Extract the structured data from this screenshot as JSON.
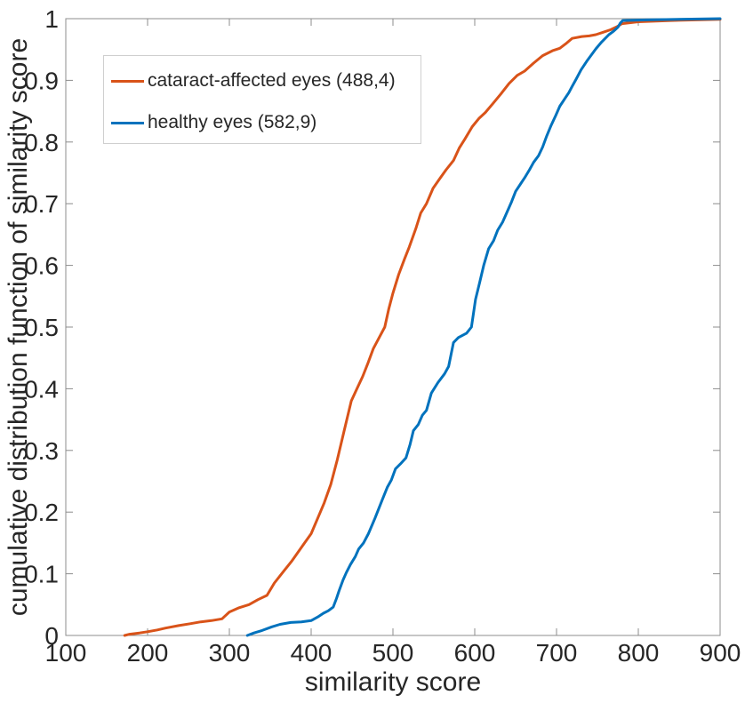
{
  "colors": {
    "axis": "#8C8C8C",
    "text": "#262626",
    "legend_border": "#CFCFCF",
    "background": "#FFFFFF"
  },
  "chart_data": {
    "type": "line",
    "subtype": "empirical_cdf",
    "title": "",
    "xlabel": "similarity score",
    "ylabel": "cumulative distribution function of similarity score",
    "xlim": [
      100,
      900
    ],
    "ylim": [
      0,
      1
    ],
    "x_ticks": [
      100,
      200,
      300,
      400,
      500,
      600,
      700,
      800,
      900
    ],
    "x_tick_labels": [
      "100",
      "200",
      "300",
      "400",
      "500",
      "600",
      "700",
      "800",
      "900"
    ],
    "y_ticks": [
      0,
      0.1,
      0.2,
      0.3,
      0.4,
      0.5,
      0.6,
      0.7,
      0.8,
      0.9,
      1
    ],
    "y_tick_labels": [
      "0",
      "0.1",
      "0.2",
      "0.3",
      "0.4",
      "0.5",
      "0.6",
      "0.7",
      "0.8",
      "0.9",
      "1"
    ],
    "grid": false,
    "tick_direction": "in",
    "box": true,
    "legend_position": "top-left",
    "series": [
      {
        "id": "cataract-affected-eyes",
        "name": "cataract-affected eyes (488,4)",
        "color": "#D95319",
        "line_width": 3,
        "points": [
          [
            172,
            0
          ],
          [
            178,
            0.002
          ],
          [
            190,
            0.004
          ],
          [
            200,
            0.006
          ],
          [
            212,
            0.009
          ],
          [
            222,
            0.012
          ],
          [
            238,
            0.016
          ],
          [
            252,
            0.019
          ],
          [
            265,
            0.022
          ],
          [
            278,
            0.024
          ],
          [
            291,
            0.027
          ],
          [
            300,
            0.038
          ],
          [
            312,
            0.045
          ],
          [
            324,
            0.05
          ],
          [
            335,
            0.058
          ],
          [
            346,
            0.065
          ],
          [
            355,
            0.085
          ],
          [
            367,
            0.105
          ],
          [
            376,
            0.12
          ],
          [
            384,
            0.135
          ],
          [
            392,
            0.15
          ],
          [
            400,
            0.165
          ],
          [
            408,
            0.19
          ],
          [
            416,
            0.215
          ],
          [
            424,
            0.245
          ],
          [
            432,
            0.285
          ],
          [
            440,
            0.33
          ],
          [
            449,
            0.38
          ],
          [
            456,
            0.4
          ],
          [
            463,
            0.42
          ],
          [
            469,
            0.44
          ],
          [
            476,
            0.465
          ],
          [
            482,
            0.48
          ],
          [
            490,
            0.5
          ],
          [
            495,
            0.53
          ],
          [
            500,
            0.555
          ],
          [
            507,
            0.585
          ],
          [
            514,
            0.61
          ],
          [
            520,
            0.63
          ],
          [
            528,
            0.66
          ],
          [
            534,
            0.685
          ],
          [
            541,
            0.7
          ],
          [
            549,
            0.725
          ],
          [
            557,
            0.74
          ],
          [
            565,
            0.755
          ],
          [
            574,
            0.77
          ],
          [
            581,
            0.79
          ],
          [
            588,
            0.805
          ],
          [
            597,
            0.825
          ],
          [
            605,
            0.838
          ],
          [
            613,
            0.848
          ],
          [
            622,
            0.862
          ],
          [
            632,
            0.878
          ],
          [
            642,
            0.895
          ],
          [
            652,
            0.908
          ],
          [
            661,
            0.915
          ],
          [
            672,
            0.928
          ],
          [
            683,
            0.94
          ],
          [
            695,
            0.948
          ],
          [
            704,
            0.952
          ],
          [
            712,
            0.96
          ],
          [
            719,
            0.968
          ],
          [
            731,
            0.971
          ],
          [
            740,
            0.972
          ],
          [
            748,
            0.974
          ],
          [
            757,
            0.978
          ],
          [
            766,
            0.982
          ],
          [
            774,
            0.987
          ],
          [
            780,
            0.992
          ],
          [
            800,
            0.995
          ],
          [
            840,
            0.997
          ],
          [
            900,
            0.999
          ]
        ]
      },
      {
        "id": "healthy-eyes",
        "name": "healthy eyes (582,9)",
        "color": "#0072BD",
        "line_width": 3,
        "points": [
          [
            322,
            0
          ],
          [
            330,
            0.004
          ],
          [
            340,
            0.008
          ],
          [
            352,
            0.014
          ],
          [
            362,
            0.018
          ],
          [
            375,
            0.021
          ],
          [
            388,
            0.022
          ],
          [
            400,
            0.024
          ],
          [
            408,
            0.03
          ],
          [
            415,
            0.036
          ],
          [
            421,
            0.04
          ],
          [
            427,
            0.046
          ],
          [
            431,
            0.06
          ],
          [
            434,
            0.072
          ],
          [
            439,
            0.09
          ],
          [
            443,
            0.102
          ],
          [
            448,
            0.115
          ],
          [
            454,
            0.128
          ],
          [
            458,
            0.14
          ],
          [
            464,
            0.15
          ],
          [
            470,
            0.165
          ],
          [
            478,
            0.19
          ],
          [
            487,
            0.22
          ],
          [
            493,
            0.24
          ],
          [
            498,
            0.252
          ],
          [
            503,
            0.27
          ],
          [
            509,
            0.278
          ],
          [
            516,
            0.288
          ],
          [
            521,
            0.31
          ],
          [
            525,
            0.332
          ],
          [
            531,
            0.342
          ],
          [
            536,
            0.357
          ],
          [
            541,
            0.365
          ],
          [
            547,
            0.393
          ],
          [
            555,
            0.41
          ],
          [
            563,
            0.424
          ],
          [
            568,
            0.436
          ],
          [
            571,
            0.455
          ],
          [
            574,
            0.475
          ],
          [
            580,
            0.483
          ],
          [
            590,
            0.49
          ],
          [
            596,
            0.5
          ],
          [
            601,
            0.545
          ],
          [
            606,
            0.572
          ],
          [
            611,
            0.6
          ],
          [
            617,
            0.627
          ],
          [
            623,
            0.64
          ],
          [
            628,
            0.657
          ],
          [
            634,
            0.67
          ],
          [
            639,
            0.685
          ],
          [
            645,
            0.703
          ],
          [
            650,
            0.72
          ],
          [
            656,
            0.732
          ],
          [
            661,
            0.742
          ],
          [
            667,
            0.755
          ],
          [
            672,
            0.767
          ],
          [
            678,
            0.778
          ],
          [
            683,
            0.792
          ],
          [
            688,
            0.81
          ],
          [
            693,
            0.826
          ],
          [
            699,
            0.843
          ],
          [
            704,
            0.858
          ],
          [
            710,
            0.87
          ],
          [
            715,
            0.88
          ],
          [
            719,
            0.89
          ],
          [
            724,
            0.902
          ],
          [
            730,
            0.917
          ],
          [
            737,
            0.931
          ],
          [
            742,
            0.94
          ],
          [
            748,
            0.951
          ],
          [
            755,
            0.962
          ],
          [
            764,
            0.974
          ],
          [
            770,
            0.98
          ],
          [
            775,
            0.986
          ],
          [
            778,
            0.993
          ],
          [
            781,
            0.997
          ],
          [
            810,
            0.998
          ],
          [
            900,
            1
          ]
        ]
      }
    ]
  }
}
